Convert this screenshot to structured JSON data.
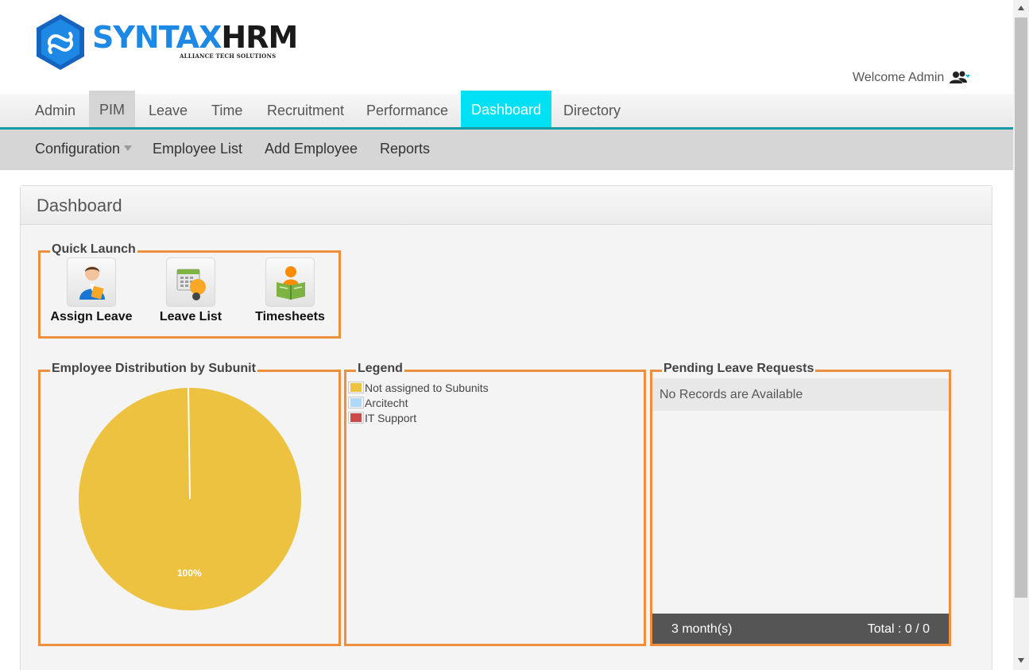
{
  "brand": {
    "name_part1": "SYNTAX",
    "name_part2": "HRM",
    "tagline": "ALLIANCE TECH SOLUTIONS",
    "color_primary": "#1e88e5"
  },
  "header": {
    "welcome": "Welcome Admin",
    "user_icon": "users-icon"
  },
  "main_nav": {
    "active_color": "#00e0f5",
    "accent_color": "#1a9aa7",
    "tabs": [
      {
        "label": "Admin"
      },
      {
        "label": "PIM"
      },
      {
        "label": "Leave"
      },
      {
        "label": "Time"
      },
      {
        "label": "Recruitment"
      },
      {
        "label": "Performance"
      },
      {
        "label": "Dashboard"
      },
      {
        "label": "Directory"
      }
    ]
  },
  "sub_nav": {
    "items": [
      {
        "label": "Configuration",
        "dropdown": true
      },
      {
        "label": "Employee List"
      },
      {
        "label": "Add Employee"
      },
      {
        "label": "Reports"
      }
    ]
  },
  "panel": {
    "title": "Dashboard"
  },
  "quick_launch": {
    "title": "Quick Launch",
    "items": [
      {
        "label": "Assign Leave",
        "icon": "assign-leave-icon"
      },
      {
        "label": "Leave List",
        "icon": "leave-list-icon"
      },
      {
        "label": "Timesheets",
        "icon": "timesheets-icon"
      }
    ]
  },
  "distribution": {
    "title": "Employee Distribution by Subunit",
    "slice_label": "100%"
  },
  "chart_data": {
    "type": "pie",
    "title": "Employee Distribution by Subunit",
    "slices": [
      {
        "label": "Not assigned to Subunits",
        "value": 100,
        "color": "#edc240"
      },
      {
        "label": "Arcitecht",
        "value": 0,
        "color": "#afd8f8"
      },
      {
        "label": "IT Support",
        "value": 0,
        "color": "#cb4b4b"
      }
    ],
    "data_labels": [
      "100%"
    ]
  },
  "legend": {
    "title": "Legend",
    "items": [
      {
        "label": "Not assigned to Subunits",
        "color": "#edc240"
      },
      {
        "label": "Arcitecht",
        "color": "#afd8f8"
      },
      {
        "label": "IT Support",
        "color": "#cb4b4b"
      }
    ]
  },
  "pending": {
    "title": "Pending Leave Requests",
    "empty_text": "No Records are Available",
    "period": "3 month(s)",
    "total": "Total : 0 / 0"
  },
  "box_border_color": "#ec8f3f"
}
